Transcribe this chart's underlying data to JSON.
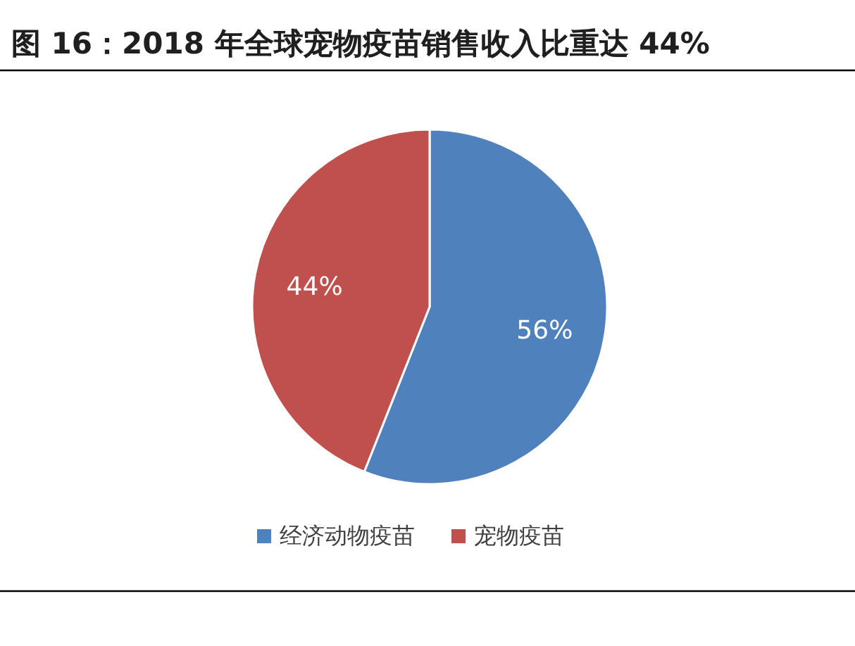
{
  "chart_data": {
    "type": "pie",
    "title": "图 16：2018 年全球宠物疫苗销售收入比重达 44%",
    "categories": [
      "经济动物疫苗",
      "宠物疫苗"
    ],
    "values": [
      56,
      44
    ],
    "colors": [
      "#4f81bd",
      "#c0504d"
    ],
    "value_labels": [
      "56%",
      "44%"
    ],
    "legend": "bottom"
  }
}
